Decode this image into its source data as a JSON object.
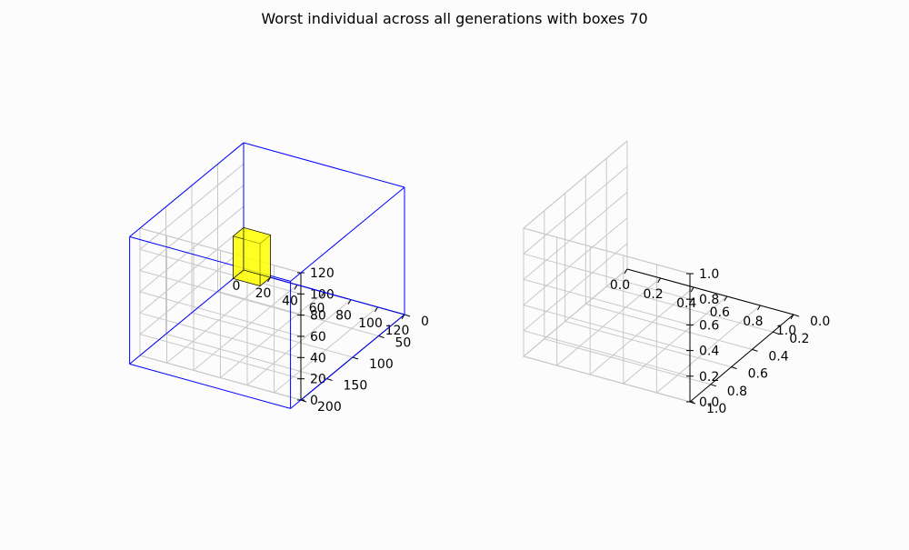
{
  "figure": {
    "title": "Worst individual across all generations with boxes 70"
  },
  "chart_data": [
    {
      "type": "3d-wireframe",
      "xlim": [
        0,
        120
      ],
      "ylim": [
        0,
        200
      ],
      "zlim": [
        0,
        120
      ],
      "xticks": [
        "0",
        "20",
        "40",
        "60",
        "80",
        "100",
        "120"
      ],
      "yticks": [
        "0",
        "50",
        "100",
        "150",
        "200"
      ],
      "zticks": [
        "0",
        "20",
        "40",
        "60",
        "80",
        "100",
        "120"
      ],
      "container": {
        "x": [
          0,
          120
        ],
        "y": [
          0,
          220
        ],
        "z": [
          0,
          120
        ],
        "color": "#0000ff"
      },
      "boxes": [
        {
          "x": [
            0,
            20
          ],
          "y": [
            0,
            20
          ],
          "z": [
            0,
            40
          ],
          "color": "#ffff00"
        }
      ]
    },
    {
      "type": "3d-empty",
      "xlim": [
        0,
        1
      ],
      "ylim": [
        0,
        1
      ],
      "zlim": [
        0,
        1
      ],
      "xticks": [
        "0.0",
        "0.2",
        "0.4",
        "0.6",
        "0.8",
        "1.0"
      ],
      "yticks": [
        "0.0",
        "0.2",
        "0.4",
        "0.6",
        "0.8",
        "1.0"
      ],
      "zticks": [
        "0.0",
        "0.2",
        "0.4",
        "0.6",
        "0.8",
        "1.0"
      ]
    }
  ]
}
